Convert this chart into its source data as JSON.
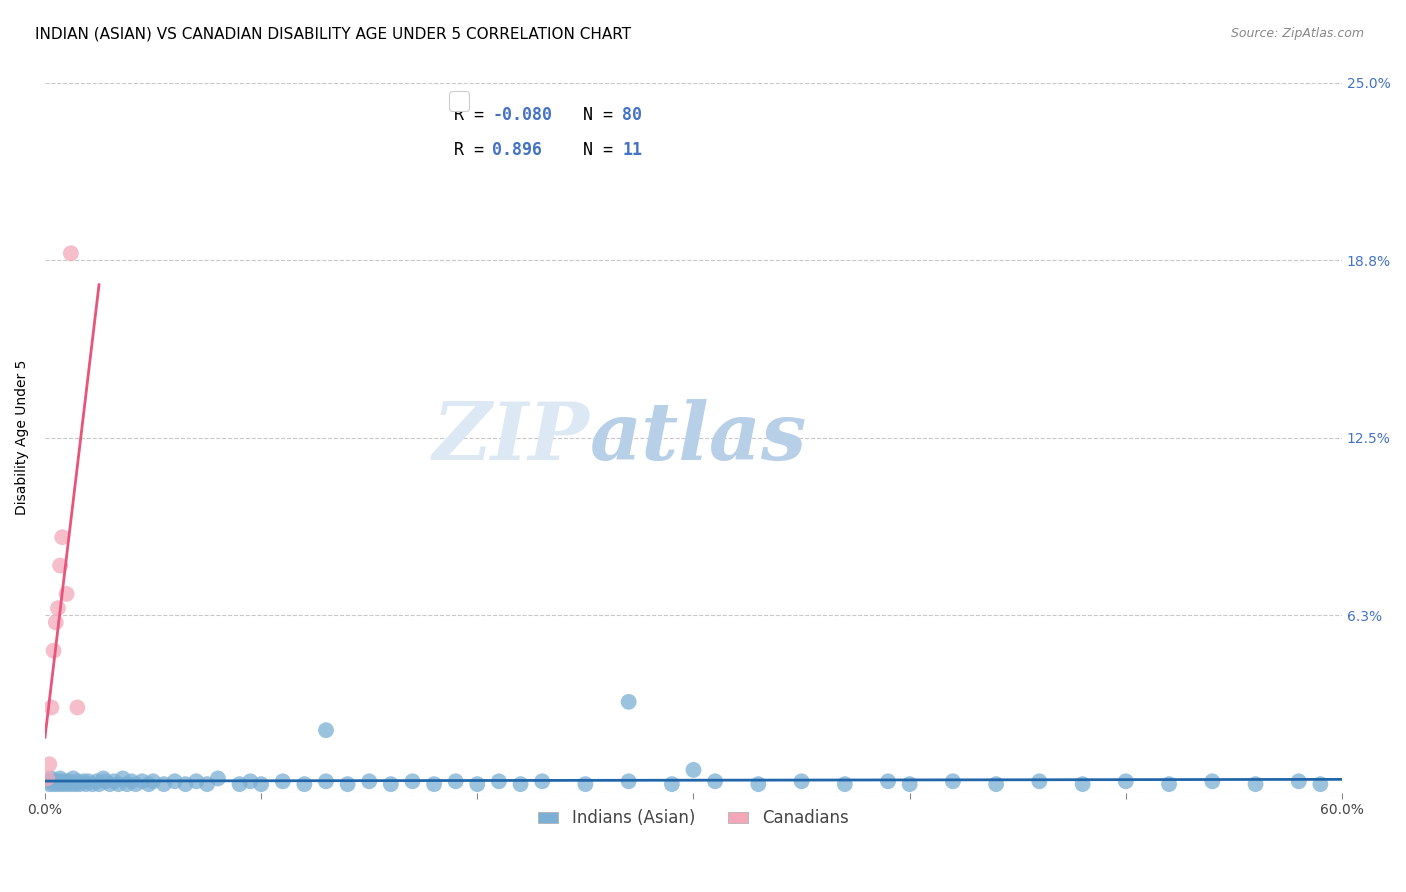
{
  "title": "INDIAN (ASIAN) VS CANADIAN DISABILITY AGE UNDER 5 CORRELATION CHART",
  "source": "Source: ZipAtlas.com",
  "ylabel": "Disability Age Under 5",
  "xlabel": "",
  "xlim": [
    0.0,
    0.6
  ],
  "ylim": [
    0.0,
    0.25
  ],
  "yticks": [
    0.0,
    0.0625,
    0.125,
    0.1875,
    0.25
  ],
  "ytick_labels": [
    "",
    "6.3%",
    "12.5%",
    "18.8%",
    "25.0%"
  ],
  "xticks": [
    0.0,
    0.1,
    0.2,
    0.3,
    0.4,
    0.5,
    0.6
  ],
  "xtick_labels": [
    "0.0%",
    "",
    "",
    "",
    "",
    "",
    "60.0%"
  ],
  "blue_R": -0.08,
  "blue_N": 80,
  "pink_R": 0.896,
  "pink_N": 11,
  "blue_color": "#7bafd4",
  "pink_color": "#f4a7b9",
  "blue_line_color": "#2266aa",
  "pink_line_color": "#e8547a",
  "blue_x": [
    0.001,
    0.002,
    0.003,
    0.004,
    0.004,
    0.005,
    0.006,
    0.007,
    0.007,
    0.008,
    0.009,
    0.01,
    0.011,
    0.012,
    0.013,
    0.014,
    0.015,
    0.016,
    0.018,
    0.019,
    0.02,
    0.022,
    0.024,
    0.025,
    0.027,
    0.028,
    0.03,
    0.032,
    0.034,
    0.036,
    0.038,
    0.04,
    0.042,
    0.045,
    0.048,
    0.05,
    0.055,
    0.06,
    0.065,
    0.07,
    0.075,
    0.08,
    0.09,
    0.095,
    0.1,
    0.11,
    0.12,
    0.13,
    0.14,
    0.15,
    0.16,
    0.17,
    0.18,
    0.19,
    0.2,
    0.21,
    0.22,
    0.23,
    0.25,
    0.27,
    0.29,
    0.31,
    0.33,
    0.35,
    0.37,
    0.39,
    0.4,
    0.42,
    0.44,
    0.46,
    0.48,
    0.5,
    0.52,
    0.54,
    0.56,
    0.58,
    0.59,
    0.27,
    0.3,
    0.13
  ],
  "blue_y": [
    0.004,
    0.003,
    0.005,
    0.004,
    0.003,
    0.004,
    0.003,
    0.005,
    0.004,
    0.003,
    0.004,
    0.003,
    0.004,
    0.003,
    0.005,
    0.003,
    0.004,
    0.003,
    0.004,
    0.003,
    0.004,
    0.003,
    0.004,
    0.003,
    0.005,
    0.004,
    0.003,
    0.004,
    0.003,
    0.005,
    0.003,
    0.004,
    0.003,
    0.004,
    0.003,
    0.004,
    0.003,
    0.004,
    0.003,
    0.004,
    0.003,
    0.005,
    0.003,
    0.004,
    0.003,
    0.004,
    0.003,
    0.004,
    0.003,
    0.004,
    0.003,
    0.004,
    0.003,
    0.004,
    0.003,
    0.004,
    0.003,
    0.004,
    0.003,
    0.004,
    0.003,
    0.004,
    0.003,
    0.004,
    0.003,
    0.004,
    0.003,
    0.004,
    0.003,
    0.004,
    0.003,
    0.004,
    0.003,
    0.004,
    0.003,
    0.004,
    0.003,
    0.032,
    0.008,
    0.022
  ],
  "pink_x": [
    0.001,
    0.002,
    0.003,
    0.004,
    0.005,
    0.006,
    0.007,
    0.008,
    0.01,
    0.012,
    0.015
  ],
  "pink_y": [
    0.005,
    0.01,
    0.03,
    0.05,
    0.06,
    0.065,
    0.08,
    0.09,
    0.07,
    0.19,
    0.03
  ],
  "pink_trend_x0": 0.0,
  "pink_trend_x1": 0.019,
  "watermark_part1": "ZIP",
  "watermark_part2": "atlas",
  "watermark_color1": "#dce9f5",
  "watermark_color2": "#b8cfe8",
  "title_fontsize": 11,
  "axis_label_fontsize": 10,
  "tick_fontsize": 10,
  "legend_fontsize": 12
}
